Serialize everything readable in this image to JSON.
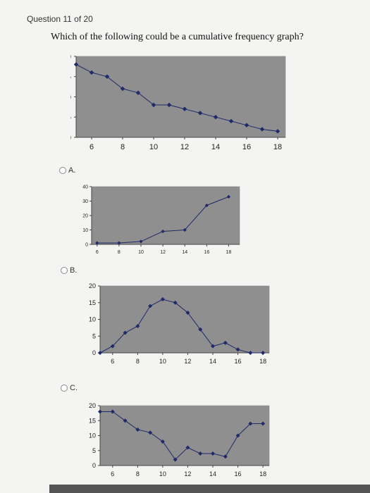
{
  "header": {
    "progress": "Question 11 of 20"
  },
  "question": {
    "text": "Which of the following could be a cumulative frequency graph?"
  },
  "choices": [
    {
      "id": "A",
      "label": "A."
    },
    {
      "id": "B",
      "label": "B."
    },
    {
      "id": "C",
      "label": "C."
    }
  ],
  "colors": {
    "plot_bg": "#8f8f8f",
    "line": "#1f2a6b",
    "frame": "#444444"
  },
  "chart_data": [
    {
      "type": "line",
      "title": "",
      "xlabel": "",
      "ylabel": "",
      "x": [
        5,
        6,
        7,
        8,
        9,
        10,
        11,
        12,
        13,
        14,
        15,
        16,
        17,
        18
      ],
      "series": [
        {
          "values": [
            18,
            16,
            15,
            12,
            11,
            8,
            8,
            7,
            6,
            5,
            4,
            3,
            2,
            1.5
          ]
        }
      ],
      "xticks": [
        "6",
        "8",
        "10",
        "12",
        "14",
        "16",
        "18"
      ],
      "yticks": [
        "0",
        "5",
        "10",
        "15",
        "20"
      ],
      "xlim": [
        5,
        18.5
      ],
      "ylim": [
        0,
        20
      ],
      "grid": false
    },
    {
      "type": "line",
      "title": "",
      "xlabel": "",
      "ylabel": "",
      "x": [
        6,
        8,
        10,
        12,
        14,
        16,
        18
      ],
      "series": [
        {
          "values": [
            1,
            1,
            2,
            9,
            10,
            27,
            33
          ]
        }
      ],
      "xticks": [
        "6",
        "8",
        "10",
        "12",
        "14",
        "16",
        "18"
      ],
      "yticks": [
        "0",
        "10",
        "20",
        "30",
        "40"
      ],
      "xlim": [
        5.5,
        19
      ],
      "ylim": [
        0,
        40
      ],
      "grid": false
    },
    {
      "type": "line",
      "title": "",
      "xlabel": "",
      "ylabel": "",
      "x": [
        5,
        6,
        7,
        8,
        9,
        10,
        11,
        12,
        13,
        14,
        15,
        16,
        17,
        18
      ],
      "series": [
        {
          "values": [
            0,
            2,
            6,
            8,
            14,
            16,
            15,
            12,
            7,
            2,
            3,
            1,
            0,
            0
          ]
        }
      ],
      "xticks": [
        "6",
        "8",
        "10",
        "12",
        "14",
        "16",
        "18"
      ],
      "yticks": [
        "0",
        "5",
        "10",
        "15",
        "20"
      ],
      "xlim": [
        5,
        18.5
      ],
      "ylim": [
        0,
        20
      ],
      "grid": false
    },
    {
      "type": "line",
      "title": "",
      "xlabel": "",
      "ylabel": "",
      "x": [
        5,
        6,
        7,
        8,
        9,
        10,
        11,
        12,
        13,
        14,
        15,
        16,
        17,
        18
      ],
      "series": [
        {
          "values": [
            18,
            18,
            15,
            12,
            11,
            8,
            2,
            6,
            4,
            4,
            3,
            10,
            14,
            14
          ]
        }
      ],
      "xticks": [
        "6",
        "8",
        "10",
        "12",
        "14",
        "16",
        "18"
      ],
      "yticks": [
        "0",
        "5",
        "10",
        "15",
        "20"
      ],
      "xlim": [
        5,
        18.5
      ],
      "ylim": [
        0,
        20
      ],
      "grid": false
    }
  ]
}
